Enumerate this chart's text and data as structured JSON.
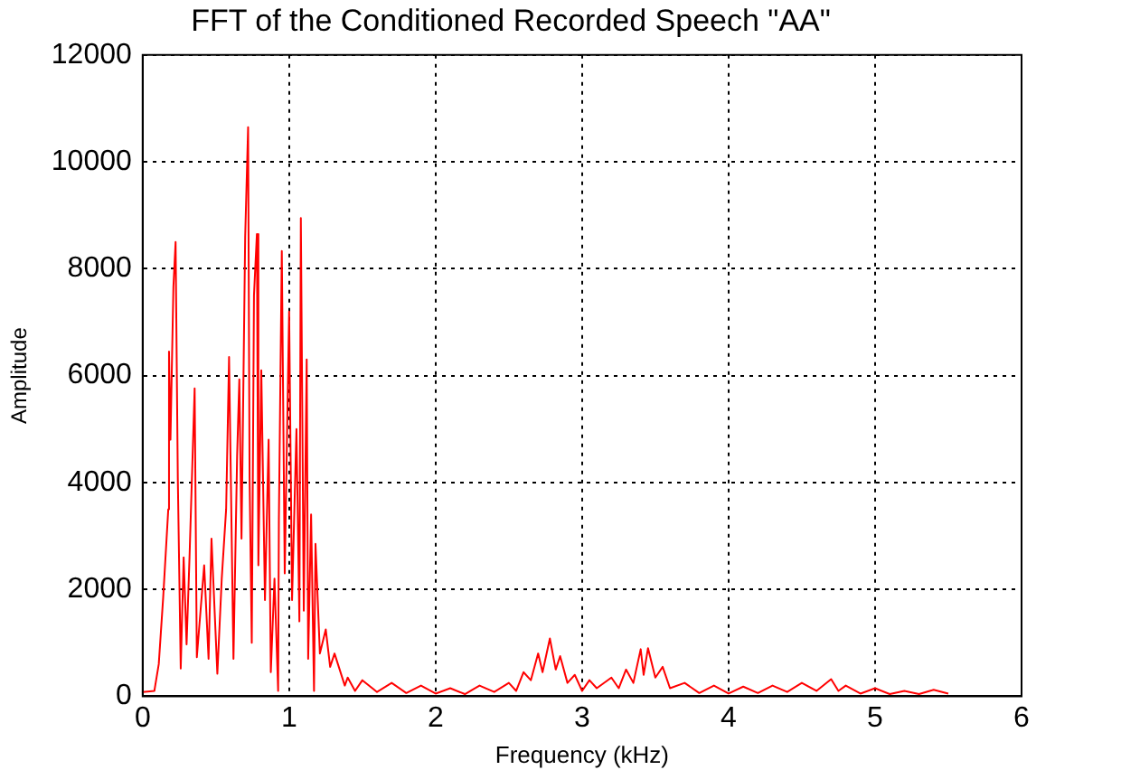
{
  "chart_data": {
    "type": "line",
    "title": "FFT of the Conditioned Recorded Speech \"AA\"",
    "xlabel": "Frequency (kHz)",
    "ylabel": "Amplitude",
    "xlim": [
      0,
      6
    ],
    "xticks": [
      0,
      1,
      2,
      3,
      4,
      5,
      6
    ],
    "ylim": [
      0,
      12000
    ],
    "yticks": [
      0,
      2000,
      4000,
      6000,
      8000,
      10000,
      12000
    ],
    "grid": true,
    "legend": false,
    "marker": "none",
    "line_style": "solid",
    "series": [
      {
        "color": "#ff0000",
        "x": [
          0,
          0.08,
          0.11,
          0.14,
          0.175,
          0.18,
          0.19,
          0.21,
          0.225,
          0.24,
          0.26,
          0.28,
          0.3,
          0.32,
          0.355,
          0.37,
          0.42,
          0.45,
          0.47,
          0.51,
          0.54,
          0.57,
          0.59,
          0.62,
          0.645,
          0.66,
          0.675,
          0.7,
          0.72,
          0.73,
          0.745,
          0.76,
          0.78,
          0.79,
          0.81,
          0.835,
          0.86,
          0.875,
          0.9,
          0.925,
          0.93,
          0.95,
          0.97,
          1.0,
          1.02,
          1.05,
          1.07,
          1.08,
          1.1,
          1.12,
          1.13,
          1.15,
          1.17,
          1.18,
          1.21,
          1.25,
          1.28,
          1.31,
          1.38,
          1.4,
          1.45,
          1.5,
          1.6,
          1.7,
          1.8,
          1.9,
          2.0,
          2.1,
          2.2,
          2.3,
          2.4,
          2.5,
          2.55,
          2.6,
          2.65,
          2.7,
          2.73,
          2.78,
          2.82,
          2.85,
          2.9,
          2.95,
          3.0,
          3.05,
          3.1,
          3.2,
          3.25,
          3.3,
          3.35,
          3.4,
          3.42,
          3.45,
          3.5,
          3.55,
          3.6,
          3.7,
          3.8,
          3.9,
          4.0,
          4.1,
          4.2,
          4.3,
          4.4,
          4.5,
          4.6,
          4.7,
          4.75,
          4.8,
          4.9,
          5.0,
          5.1,
          5.2,
          5.3,
          5.4,
          5.5
        ],
        "values": [
          80,
          100,
          600,
          1840,
          3500,
          6450,
          4800,
          7660,
          8500,
          4100,
          520,
          2600,
          970,
          2600,
          5760,
          730,
          2450,
          700,
          2950,
          420,
          2200,
          3500,
          6350,
          700,
          4500,
          5930,
          2950,
          8600,
          10650,
          4100,
          1000,
          7500,
          8650,
          2450,
          6100,
          1800,
          4800,
          450,
          2200,
          100,
          3300,
          8330,
          2300,
          7200,
          1800,
          5000,
          1400,
          8950,
          1600,
          6300,
          700,
          3400,
          100,
          2850,
          800,
          1250,
          550,
          800,
          200,
          350,
          100,
          300,
          80,
          250,
          60,
          200,
          50,
          150,
          40,
          200,
          80,
          250,
          100,
          450,
          300,
          800,
          450,
          1080,
          500,
          750,
          250,
          400,
          100,
          300,
          150,
          350,
          150,
          500,
          250,
          880,
          400,
          900,
          350,
          550,
          150,
          250,
          60,
          200,
          50,
          180,
          60,
          200,
          80,
          250,
          100,
          320,
          100,
          200,
          50,
          150,
          40,
          100,
          40,
          120,
          50
        ]
      }
    ]
  }
}
